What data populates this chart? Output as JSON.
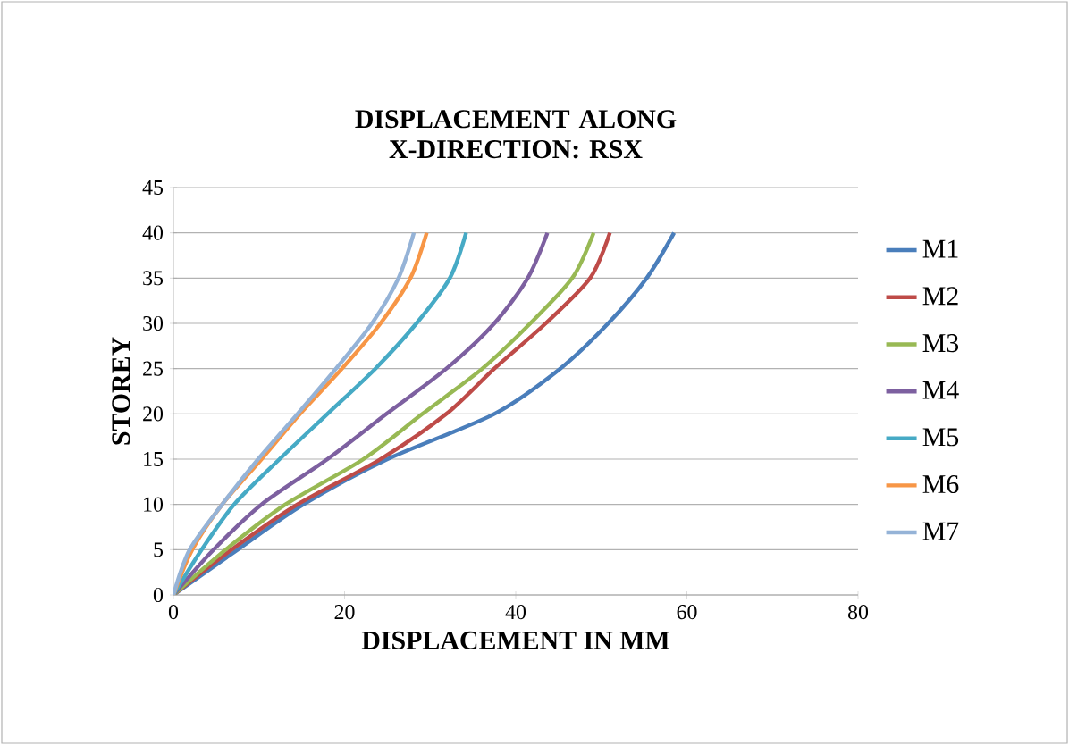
{
  "chart_data": {
    "type": "line",
    "title": "DISPLACEMENT ALONG X-DIRECTION: RSX",
    "xlabel": "DISPLACEMENT IN MM",
    "ylabel": "STOREY",
    "xlim": [
      0,
      80
    ],
    "xticks": [
      0,
      20,
      40,
      60,
      80
    ],
    "ylim": [
      0,
      45
    ],
    "yticks": [
      0,
      5,
      10,
      15,
      20,
      25,
      30,
      35,
      40,
      45
    ],
    "grid": "y",
    "legend": "right",
    "marker": "none",
    "line_style": "solid",
    "series": [
      {
        "name": "M1",
        "color": "#4a7ebb",
        "x": [
          0,
          7.5,
          15.2,
          25,
          37.5,
          45.2,
          50.8,
          55.3,
          58.5
        ],
        "values": [
          0,
          5,
          10,
          15,
          20,
          25,
          30,
          35,
          40
        ]
      },
      {
        "name": "M2",
        "color": "#be4b48",
        "x": [
          0,
          6.8,
          14.5,
          24.2,
          31.9,
          37.5,
          43.5,
          48.7,
          51.0
        ],
        "values": [
          0,
          5,
          10,
          15,
          20,
          25,
          30,
          35,
          40
        ]
      },
      {
        "name": "M3",
        "color": "#98b954",
        "x": [
          0,
          6.1,
          13.1,
          22.2,
          29.1,
          36.1,
          41.7,
          46.6,
          49.1
        ],
        "values": [
          0,
          5,
          10,
          15,
          20,
          25,
          30,
          35,
          40
        ]
      },
      {
        "name": "M4",
        "color": "#7d60a0",
        "x": [
          0,
          4.7,
          10.3,
          18.0,
          24.9,
          31.9,
          37.5,
          41.4,
          43.7
        ],
        "values": [
          0,
          5,
          10,
          15,
          20,
          25,
          30,
          35,
          40
        ]
      },
      {
        "name": "M5",
        "color": "#46aac5",
        "x": [
          0,
          3.3,
          7.1,
          12.4,
          18.0,
          23.6,
          28.4,
          32.3,
          34.2
        ],
        "values": [
          0,
          5,
          10,
          15,
          20,
          25,
          30,
          35,
          40
        ]
      },
      {
        "name": "M6",
        "color": "#f79646",
        "x": [
          0,
          2.2,
          5.7,
          10.3,
          14.8,
          19.7,
          24.2,
          27.7,
          29.6
        ],
        "values": [
          0,
          5,
          10,
          15,
          20,
          25,
          30,
          35,
          40
        ]
      },
      {
        "name": "M7",
        "color": "#95b3d7",
        "x": [
          0,
          1.9,
          5.7,
          9.9,
          14.5,
          19.0,
          23.2,
          26.3,
          28.1
        ],
        "values": [
          0,
          5,
          10,
          15,
          20,
          25,
          30,
          35,
          40
        ]
      }
    ]
  }
}
